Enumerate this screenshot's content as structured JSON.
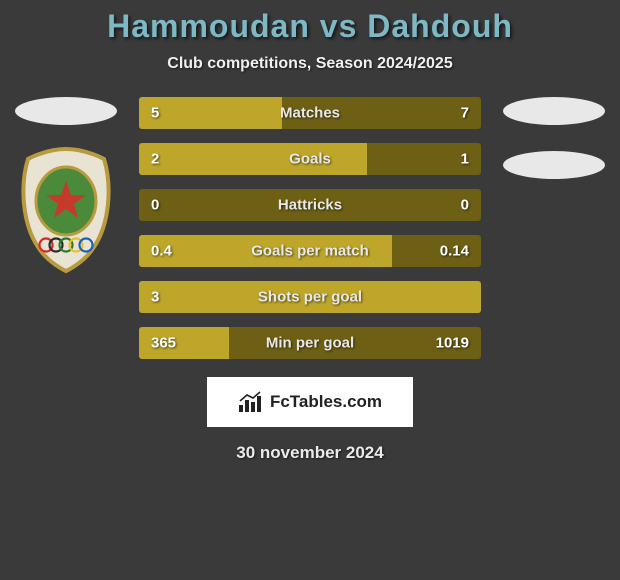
{
  "title": "Hammoudan vs Dahdouh",
  "subtitle": "Club competitions, Season 2024/2025",
  "date": "30 november 2024",
  "brand": "FcTables.com",
  "colors": {
    "bar_fill": "#bda62a",
    "bar_bg": "#6d6015",
    "title_color": "#7eb8c4",
    "text_color": "#f0f0f0",
    "background": "#3a3a3a",
    "brand_bg": "#ffffff"
  },
  "typography": {
    "title_fontsize": 32,
    "subtitle_fontsize": 16,
    "bar_label_fontsize": 15,
    "date_fontsize": 17
  },
  "bars": [
    {
      "label": "Matches",
      "left": "5",
      "right": "7",
      "left_pct": 41.7,
      "right_pct": 0
    },
    {
      "label": "Goals",
      "left": "2",
      "right": "1",
      "left_pct": 66.7,
      "right_pct": 0
    },
    {
      "label": "Hattricks",
      "left": "0",
      "right": "0",
      "left_pct": 0,
      "right_pct": 0
    },
    {
      "label": "Goals per match",
      "left": "0.4",
      "right": "0.14",
      "left_pct": 74.1,
      "right_pct": 0
    },
    {
      "label": "Shots per goal",
      "left": "3",
      "right": "",
      "left_pct": 100,
      "right_pct": 0
    },
    {
      "label": "Min per goal",
      "left": "365",
      "right": "1019",
      "left_pct": 26.4,
      "right_pct": 0
    }
  ],
  "badge": {
    "frame_color": "#b89b3e",
    "inner_color": "#4b8a3a",
    "star_color": "#c53a2a",
    "rings": [
      "#d62828",
      "#2a2a2a",
      "#2a7a2a",
      "#e6c229",
      "#1d5fbf"
    ]
  }
}
